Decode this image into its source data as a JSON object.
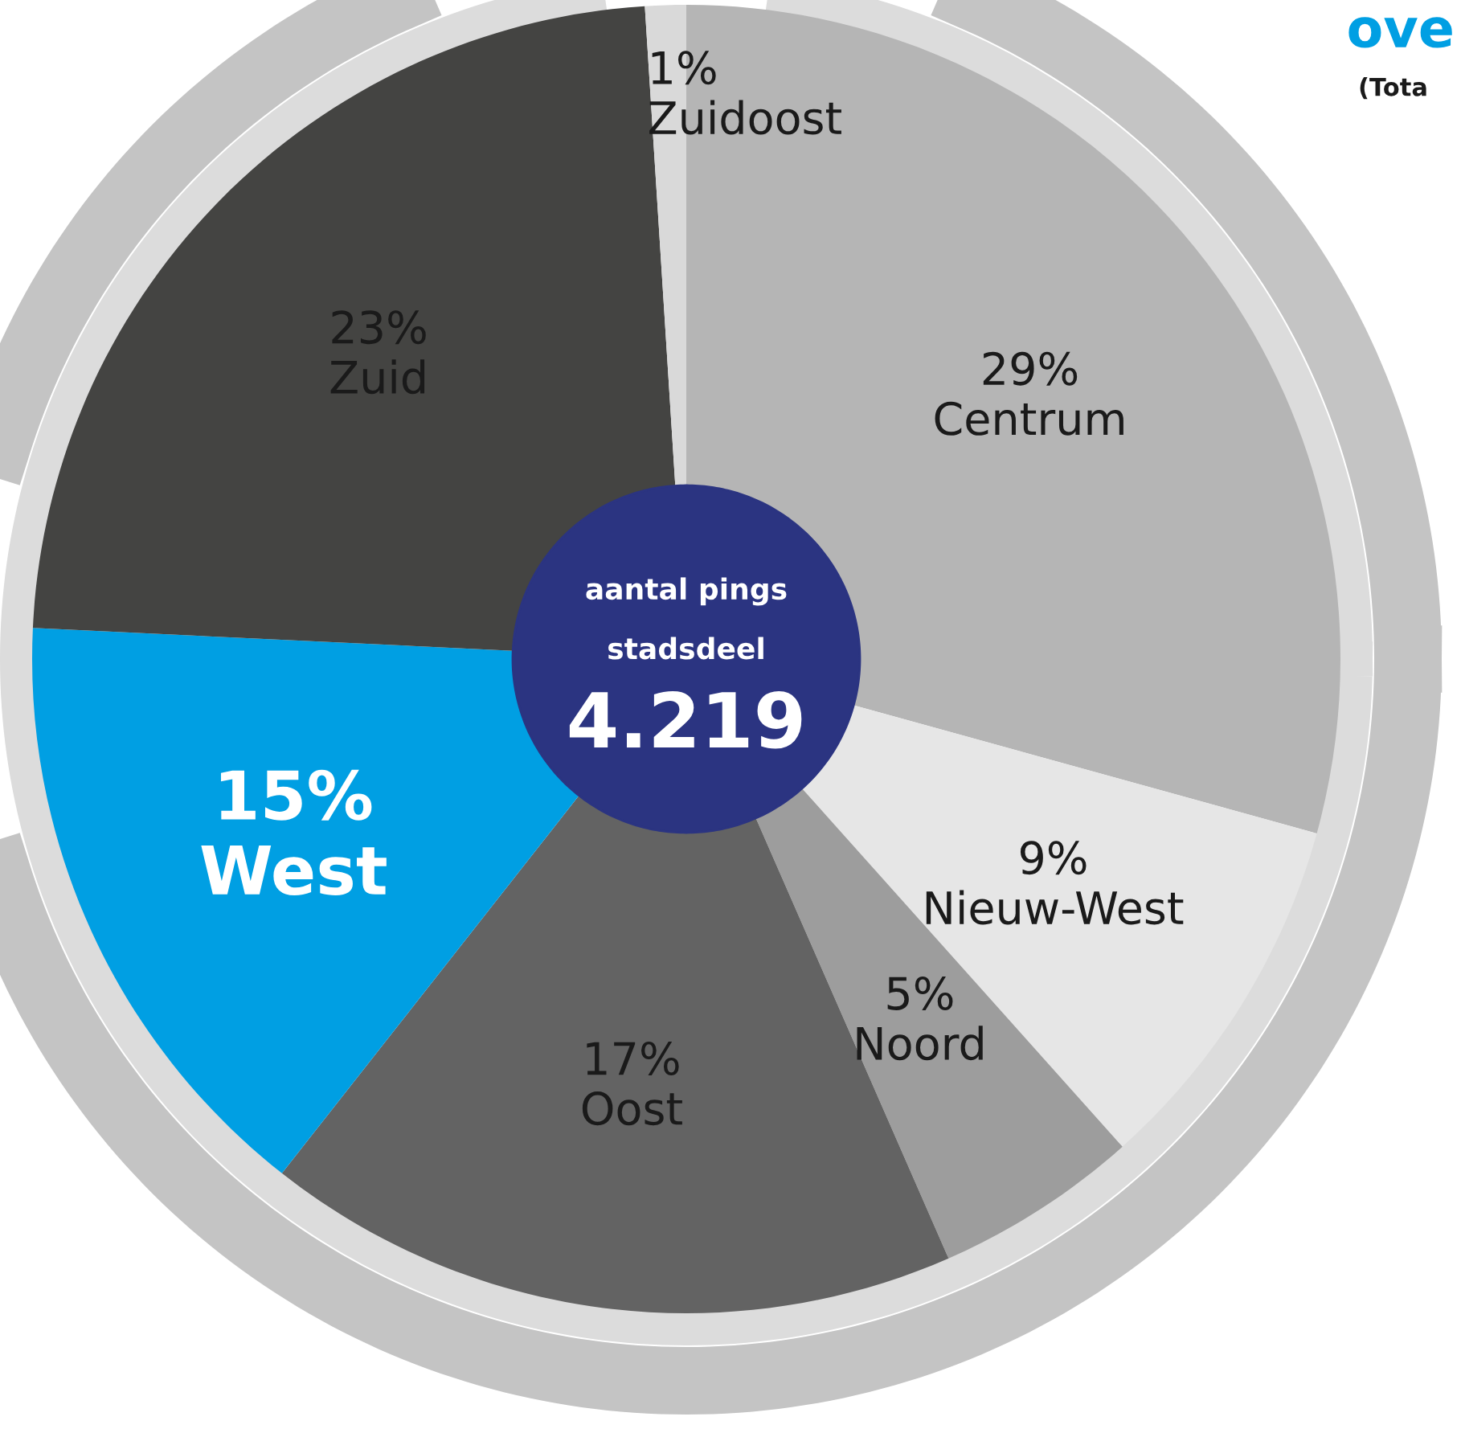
{
  "chart_data": {
    "type": "donut",
    "title": "ove",
    "subtitle": "(Tota",
    "categories": [
      "Centrum",
      "Nieuw-West",
      "Noord",
      "Oost",
      "West",
      "Zuid",
      "Zuidoost"
    ],
    "values": [
      29,
      9,
      5,
      17,
      15,
      23,
      1
    ],
    "value_labels": [
      "29%",
      "9%",
      "5%",
      "17%",
      "15%",
      "23%",
      "1%"
    ],
    "colors": [
      "#b5b5b5",
      "#e6e6e6",
      "#9d9d9d",
      "#636363",
      "#009fe3",
      "#444442",
      "#d9d9d9"
    ],
    "annotations": [
      "aantal pings",
      "stadsdeel",
      "4.219"
    ]
  }
}
